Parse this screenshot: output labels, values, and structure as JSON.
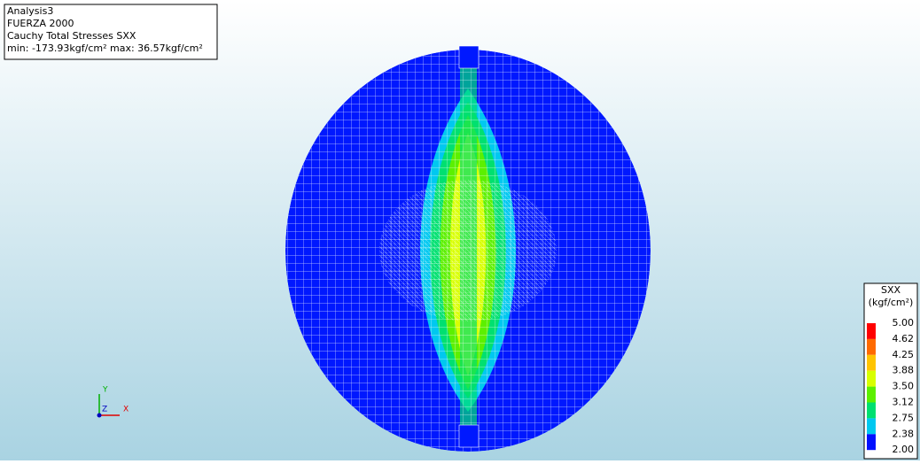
{
  "info": {
    "lines": [
      "Analysis3",
      "FUERZA 2000",
      "Cauchy Total Stresses SXX",
      "min: -173.93kgf/cm² max: 36.57kgf/cm²"
    ]
  },
  "legend": {
    "title": "SXX",
    "unit": "(kgf/cm²)",
    "labels": [
      "5.00",
      "4.62",
      "4.25",
      "3.88",
      "3.50",
      "3.12",
      "2.75",
      "2.38",
      "2.00"
    ],
    "colors": [
      "#ff0000",
      "#ff6a00",
      "#ffc400",
      "#d8ff00",
      "#5cf000",
      "#00e070",
      "#00c8f0",
      "#0010ff"
    ]
  },
  "axes": {
    "x": "X",
    "y": "Y",
    "z": "Z"
  }
}
